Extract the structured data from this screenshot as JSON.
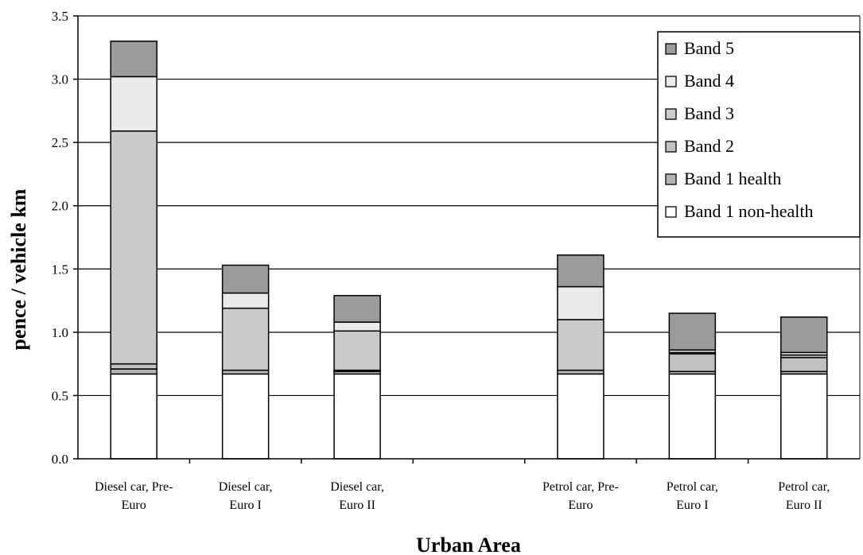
{
  "chart_data": {
    "type": "bar",
    "stacked": true,
    "xlabel": "Urban Area",
    "ylabel": "pence / vehicle km",
    "ylim": [
      0,
      3.5
    ],
    "yticks": [
      "0.0",
      "0.5",
      "1.0",
      "1.5",
      "2.0",
      "2.5",
      "3.0",
      "3.5"
    ],
    "grid": true,
    "legend_position": "top-right",
    "categories": [
      [
        "Diesel car, Pre-",
        "Euro"
      ],
      [
        "Diesel car,",
        "Euro I"
      ],
      [
        "Diesel car,",
        "Euro II"
      ],
      [
        "",
        ""
      ],
      [
        "Petrol car, Pre-",
        "Euro"
      ],
      [
        "Petrol car,",
        "Euro I"
      ],
      [
        "Petrol car,",
        "Euro II"
      ]
    ],
    "series": [
      {
        "name": "Band 1 non-health",
        "color": "#ffffff",
        "values": [
          0.67,
          0.67,
          0.67,
          null,
          0.67,
          0.67,
          0.67
        ]
      },
      {
        "name": "Band 1 health",
        "color": "#b4b4b4",
        "values": [
          0.04,
          0.03,
          0.02,
          null,
          0.03,
          0.02,
          0.02
        ]
      },
      {
        "name": "Band 2",
        "color": "#c0c0c0",
        "values": [
          0.04,
          0.0,
          0.01,
          null,
          0.0,
          0.14,
          0.11
        ]
      },
      {
        "name": "Band 3",
        "color": "#cacaca",
        "values": [
          1.84,
          0.49,
          0.31,
          null,
          0.4,
          0.01,
          0.02
        ]
      },
      {
        "name": "Band 4",
        "color": "#eaeaea",
        "values": [
          0.43,
          0.12,
          0.07,
          null,
          0.26,
          0.02,
          0.02
        ]
      },
      {
        "name": "Band 5",
        "color": "#9b9b9b",
        "values": [
          0.28,
          0.22,
          0.21,
          null,
          0.25,
          0.29,
          0.28
        ]
      }
    ],
    "legend_order": [
      "Band 5",
      "Band 4",
      "Band 3",
      "Band 2",
      "Band 1 health",
      "Band 1 non-health"
    ]
  }
}
